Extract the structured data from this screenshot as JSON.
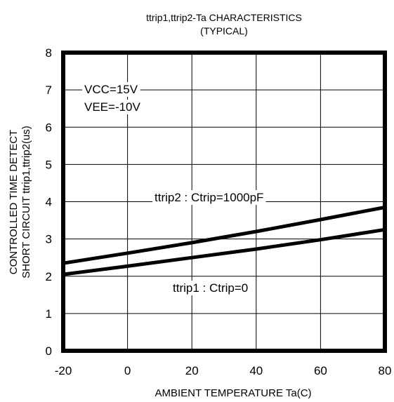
{
  "chart_data": {
    "type": "line",
    "title": "ttrip1,ttrip2-Ta CHARACTERISTICS",
    "subtitle": "(TYPICAL)",
    "xlabel": "AMBIENT TEMPERATURE Ta(C)",
    "ylabel_lines": [
      "CONTROLLED TIME DETECT",
      "SHORT CIRCUIT ttrip1,ttrip2(us)"
    ],
    "xlim": [
      -20,
      80
    ],
    "ylim": [
      0,
      8
    ],
    "x_ticks": [
      -20,
      0,
      20,
      40,
      60,
      80
    ],
    "y_ticks": [
      0,
      1,
      2,
      3,
      4,
      5,
      6,
      7,
      8
    ],
    "grid": true,
    "annotations": {
      "conditions": [
        "VCC=15V",
        "VEE=-10V"
      ],
      "series_label_top": "ttrip2 : Ctrip=1000pF",
      "series_label_bottom": "ttrip1 : Ctrip=0"
    },
    "series": [
      {
        "name": "ttrip2 : Ctrip=1000pF",
        "x": [
          -20,
          0,
          20,
          40,
          60,
          80
        ],
        "values": [
          2.35,
          2.62,
          2.9,
          3.2,
          3.52,
          3.85
        ]
      },
      {
        "name": "ttrip1 : Ctrip=0",
        "x": [
          -20,
          0,
          20,
          40,
          60,
          80
        ],
        "values": [
          2.05,
          2.27,
          2.5,
          2.73,
          2.98,
          3.25
        ]
      }
    ]
  }
}
